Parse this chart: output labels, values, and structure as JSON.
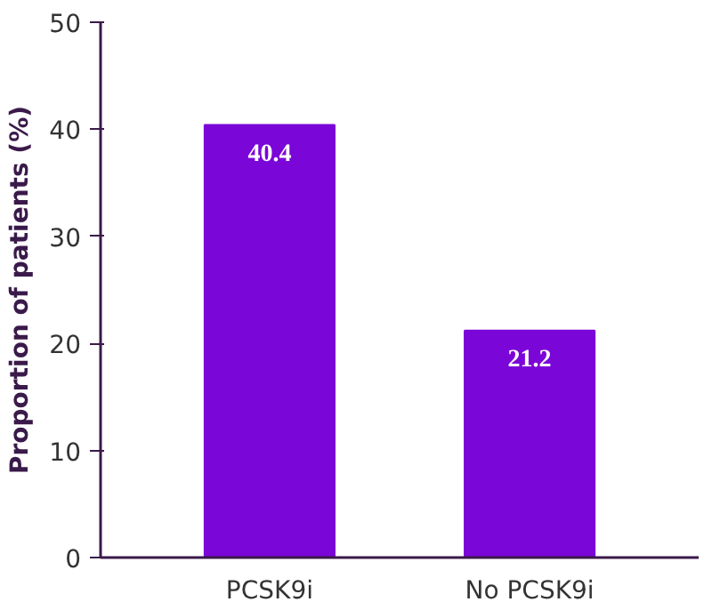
{
  "chart_data": {
    "type": "bar",
    "ylabel": "Proportion of patients (%)",
    "categories": [
      "PCSK9i",
      "No PCSK9i"
    ],
    "values": [
      40.4,
      21.2
    ],
    "color": "#7b06d8",
    "ylim": [
      0,
      50
    ],
    "yticks": [
      0,
      10,
      20,
      30,
      40,
      50
    ],
    "grid": false,
    "data_labels": true
  }
}
